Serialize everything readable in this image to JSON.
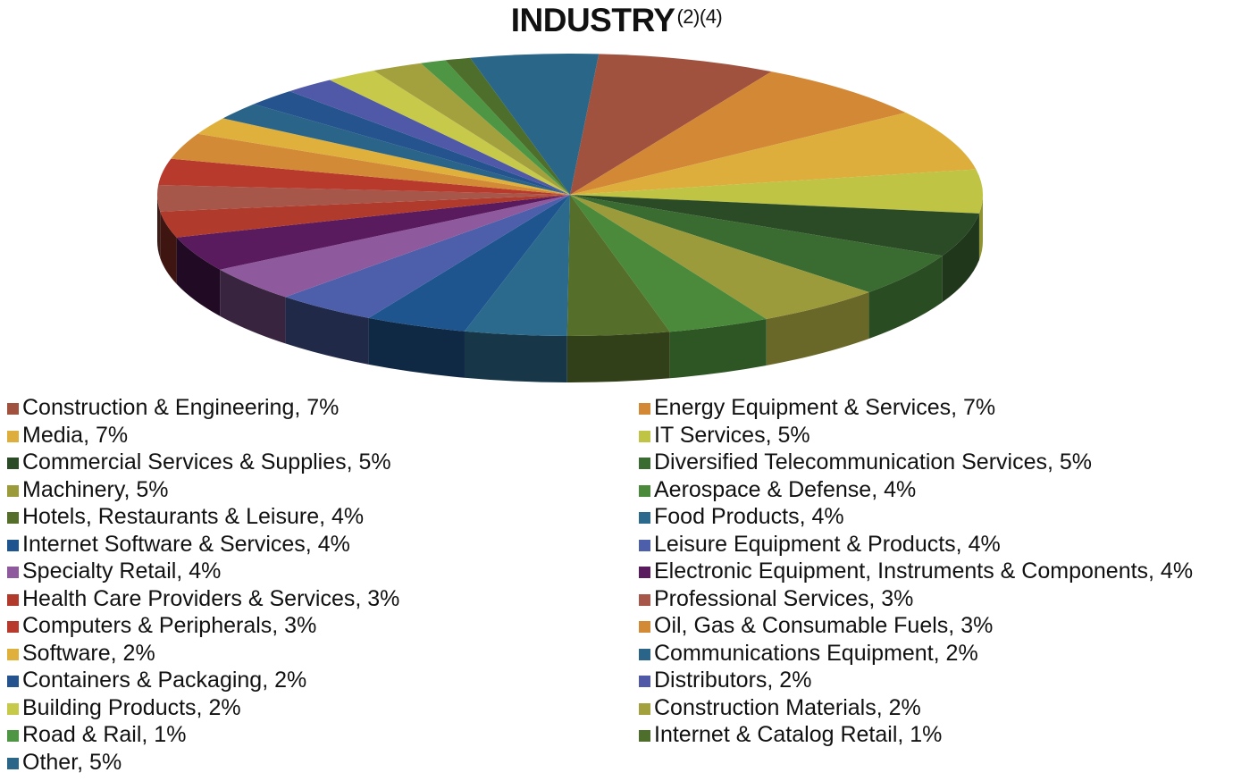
{
  "title": "INDUSTRY",
  "title_sup": "(2)(4)",
  "chart_data": {
    "type": "pie",
    "title": "INDUSTRY(2)(4)",
    "style": "3d",
    "legend_position": "bottom",
    "slices": [
      {
        "label": "Construction & Engineering",
        "value": 7,
        "display": "Construction & Engineering, 7%",
        "color": "#A0523F"
      },
      {
        "label": "Energy Equipment & Services",
        "value": 7,
        "display": "Energy Equipment & Services, 7%",
        "color": "#D38835"
      },
      {
        "label": "Media",
        "value": 7,
        "display": "Media, 7%",
        "color": "#DDAE3C"
      },
      {
        "label": "IT Services",
        "value": 5,
        "display": "IT Services, 5%",
        "color": "#BFC445"
      },
      {
        "label": "Commercial Services & Supplies",
        "value": 5,
        "display": "Commercial Services & Supplies, 5%",
        "color": "#2B4A26"
      },
      {
        "label": "Diversified Telecommunication Services",
        "value": 5,
        "display": "Diversified Telecommunication Services, 5%",
        "color": "#3A6B30"
      },
      {
        "label": "Machinery",
        "value": 5,
        "display": "Machinery, 5%",
        "color": "#9C9B3C"
      },
      {
        "label": "Aerospace & Defense",
        "value": 4,
        "display": "Aerospace & Defense, 4%",
        "color": "#4A8A3A"
      },
      {
        "label": "Hotels, Restaurants & Leisure",
        "value": 4,
        "display": "Hotels, Restaurants & Leisure, 4%",
        "color": "#556F2A"
      },
      {
        "label": "Food Products",
        "value": 4,
        "display": "Food Products, 4%",
        "color": "#2B6A8C"
      },
      {
        "label": "Internet Software & Services",
        "value": 4,
        "display": "Internet Software & Services, 4%",
        "color": "#1F558E"
      },
      {
        "label": "Leisure Equipment & Products",
        "value": 4,
        "display": "Leisure Equipment & Products, 4%",
        "color": "#4D5FAA"
      },
      {
        "label": "Specialty Retail",
        "value": 4,
        "display": "Specialty Retail, 4%",
        "color": "#8E5A9D"
      },
      {
        "label": "Electronic Equipment, Instruments & Components",
        "value": 4,
        "display": "Electronic Equipment, Instruments & Components, 4%",
        "color": "#5A1A5E"
      },
      {
        "label": "Health Care Providers & Services",
        "value": 3,
        "display": "Health Care Providers & Services, 3%",
        "color": "#B03A2C"
      },
      {
        "label": "Professional Services",
        "value": 3,
        "display": "Professional Services, 3%",
        "color": "#A7564A"
      },
      {
        "label": "Computers & Peripherals",
        "value": 3,
        "display": "Computers & Peripherals, 3%",
        "color": "#B83A2C"
      },
      {
        "label": "Oil, Gas & Consumable Fuels",
        "value": 3,
        "display": "Oil, Gas & Consumable Fuels, 3%",
        "color": "#D38A36"
      },
      {
        "label": "Software",
        "value": 2,
        "display": "Software, 2%",
        "color": "#E0B03C"
      },
      {
        "label": "Communications Equipment",
        "value": 2,
        "display": "Communications Equipment, 2%",
        "color": "#2A6488"
      },
      {
        "label": "Containers & Packaging",
        "value": 2,
        "display": "Containers & Packaging, 2%",
        "color": "#24538E"
      },
      {
        "label": "Distributors",
        "value": 2,
        "display": "Distributors, 2%",
        "color": "#5059A8"
      },
      {
        "label": "Building Products",
        "value": 2,
        "display": "Building Products, 2%",
        "color": "#C6C94A"
      },
      {
        "label": "Construction Materials",
        "value": 2,
        "display": "Construction Materials, 2%",
        "color": "#A3A03E"
      },
      {
        "label": "Road & Rail",
        "value": 1,
        "display": "Road & Rail, 1%",
        "color": "#4E9643"
      },
      {
        "label": "Internet & Catalog Retail",
        "value": 1,
        "display": "Internet & Catalog Retail, 1%",
        "color": "#4E6E2C"
      },
      {
        "label": "Other",
        "value": 5,
        "display": "Other, 5%",
        "color": "#2A6688"
      }
    ]
  }
}
